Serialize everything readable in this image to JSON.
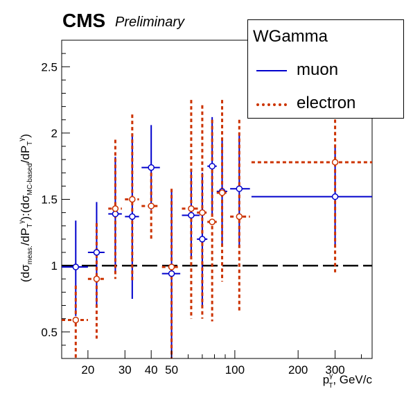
{
  "header": {
    "experiment": "CMS",
    "status": "Preliminary"
  },
  "legend": {
    "title": "WGamma",
    "entries": [
      {
        "label": "muon",
        "color": "#0000cc",
        "style": "solid"
      },
      {
        "label": "electron",
        "color": "#cc3300",
        "style": "dashed"
      }
    ]
  },
  "chart_data": {
    "type": "scatter",
    "x_scale": "log",
    "xlim": [
      15,
      450
    ],
    "ylim": [
      0.3,
      2.7
    ],
    "reference_line": 1,
    "x_ticks": [
      20,
      30,
      40,
      50,
      100,
      200,
      300
    ],
    "y_ticks": [
      0.5,
      1,
      1.5,
      2,
      2.5
    ],
    "y_tick_labels": [
      "0.5",
      "1",
      "1.5",
      "2",
      "2.5"
    ],
    "series": [
      {
        "name": "muon",
        "color": "#0000cc",
        "points": [
          {
            "x": 17.5,
            "xlo": 15,
            "xhi": 20,
            "y": 0.99,
            "ylo": 0.62,
            "yhi": 1.34
          },
          {
            "x": 22,
            "xlo": 20,
            "xhi": 24,
            "y": 1.1,
            "ylo": 0.7,
            "yhi": 1.48
          },
          {
            "x": 27,
            "xlo": 25,
            "xhi": 29,
            "y": 1.39,
            "ylo": 0.95,
            "yhi": 1.82
          },
          {
            "x": 32.5,
            "xlo": 30,
            "xhi": 35,
            "y": 1.37,
            "ylo": 0.75,
            "yhi": 1.98
          },
          {
            "x": 40,
            "xlo": 36,
            "xhi": 44,
            "y": 1.74,
            "ylo": 1.42,
            "yhi": 2.06
          },
          {
            "x": 50,
            "xlo": 45,
            "xhi": 55,
            "y": 0.94,
            "ylo": 0.3,
            "yhi": 1.57
          },
          {
            "x": 62,
            "xlo": 56,
            "xhi": 68,
            "y": 1.38,
            "ylo": 1.05,
            "yhi": 1.71
          },
          {
            "x": 70,
            "xlo": 66,
            "xhi": 74,
            "y": 1.2,
            "ylo": 0.68,
            "yhi": 1.7
          },
          {
            "x": 78,
            "xlo": 74,
            "xhi": 82,
            "y": 1.75,
            "ylo": 1.38,
            "yhi": 2.12
          },
          {
            "x": 87,
            "xlo": 82,
            "xhi": 92,
            "y": 1.56,
            "ylo": 1.15,
            "yhi": 1.96
          },
          {
            "x": 105,
            "xlo": 95,
            "xhi": 118,
            "y": 1.58,
            "ylo": 1.15,
            "yhi": 2.0
          },
          {
            "x": 300,
            "xlo": 120,
            "xhi": 450,
            "y": 1.52,
            "ylo": 1.15,
            "yhi": 1.89
          }
        ]
      },
      {
        "name": "electron",
        "color": "#cc3300",
        "points": [
          {
            "x": 17.5,
            "xlo": 15,
            "xhi": 20,
            "y": 0.59,
            "ylo": 0.3,
            "yhi": 0.85
          },
          {
            "x": 22,
            "xlo": 20,
            "xhi": 24,
            "y": 0.9,
            "ylo": 0.45,
            "yhi": 1.32
          },
          {
            "x": 27,
            "xlo": 25,
            "xhi": 29,
            "y": 1.43,
            "ylo": 0.9,
            "yhi": 1.95
          },
          {
            "x": 32.5,
            "xlo": 30,
            "xhi": 35,
            "y": 1.5,
            "ylo": 0.88,
            "yhi": 2.14
          },
          {
            "x": 40,
            "xlo": 36,
            "xhi": 44,
            "y": 1.45,
            "ylo": 1.2,
            "yhi": 1.7
          },
          {
            "x": 50,
            "xlo": 45,
            "xhi": 55,
            "y": 0.99,
            "ylo": 0.3,
            "yhi": 1.58
          },
          {
            "x": 62,
            "xlo": 56,
            "xhi": 68,
            "y": 1.43,
            "ylo": 0.6,
            "yhi": 2.25
          },
          {
            "x": 70,
            "xlo": 66,
            "xhi": 74,
            "y": 1.4,
            "ylo": 0.6,
            "yhi": 2.21
          },
          {
            "x": 78,
            "xlo": 74,
            "xhi": 82,
            "y": 1.33,
            "ylo": 0.58,
            "yhi": 2.1
          },
          {
            "x": 87,
            "xlo": 82,
            "xhi": 92,
            "y": 1.55,
            "ylo": 0.88,
            "yhi": 2.25
          },
          {
            "x": 105,
            "xlo": 95,
            "xhi": 118,
            "y": 1.37,
            "ylo": 0.65,
            "yhi": 2.1
          },
          {
            "x": 300,
            "xlo": 120,
            "xhi": 450,
            "y": 1.78,
            "ylo": 0.95,
            "yhi": 2.62
          }
        ]
      }
    ]
  }
}
